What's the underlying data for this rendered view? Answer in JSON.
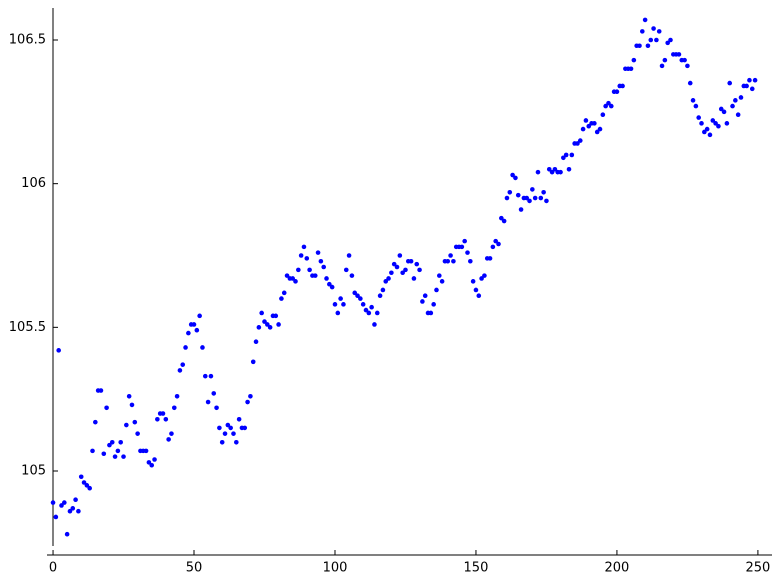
{
  "chart_data": {
    "type": "scatter",
    "color": "#0000ff",
    "x": [
      0,
      1,
      2,
      3,
      4,
      5,
      6,
      7,
      8,
      9,
      10,
      11,
      12,
      13,
      14,
      15,
      16,
      17,
      18,
      19,
      20,
      21,
      22,
      23,
      24,
      25,
      26,
      27,
      28,
      29,
      30,
      31,
      32,
      33,
      34,
      35,
      36,
      37,
      38,
      39,
      40,
      41,
      42,
      43,
      44,
      45,
      46,
      47,
      48,
      49,
      50,
      51,
      52,
      53,
      54,
      55,
      56,
      57,
      58,
      59,
      60,
      61,
      62,
      63,
      64,
      65,
      66,
      67,
      68,
      69,
      70,
      71,
      72,
      73,
      74,
      75,
      76,
      77,
      78,
      79,
      80,
      81,
      82,
      83,
      84,
      85,
      86,
      87,
      88,
      89,
      90,
      91,
      92,
      93,
      94,
      95,
      96,
      97,
      98,
      99,
      100,
      101,
      102,
      103,
      104,
      105,
      106,
      107,
      108,
      109,
      110,
      111,
      112,
      113,
      114,
      115,
      116,
      117,
      118,
      119,
      120,
      121,
      122,
      123,
      124,
      125,
      126,
      127,
      128,
      129,
      130,
      131,
      132,
      133,
      134,
      135,
      136,
      137,
      138,
      139,
      140,
      141,
      142,
      143,
      144,
      145,
      146,
      147,
      148,
      149,
      150,
      151,
      152,
      153,
      154,
      155,
      156,
      157,
      158,
      159,
      160,
      161,
      162,
      163,
      164,
      165,
      166,
      167,
      168,
      169,
      170,
      171,
      172,
      173,
      174,
      175,
      176,
      177,
      178,
      179,
      180,
      181,
      182,
      183,
      184,
      185,
      186,
      187,
      188,
      189,
      190,
      191,
      192,
      193,
      194,
      195,
      196,
      197,
      198,
      199,
      200,
      201,
      202,
      203,
      204,
      205,
      206,
      207,
      208,
      209,
      210,
      211,
      212,
      213,
      214,
      215,
      216,
      217,
      218,
      219,
      220,
      221,
      222,
      223,
      224,
      225,
      226,
      227,
      228,
      229,
      230,
      231,
      232,
      233,
      234,
      235,
      236,
      237,
      238,
      239,
      240,
      241,
      242,
      243,
      244,
      245,
      246,
      247,
      248,
      249
    ],
    "values": [
      104.89,
      104.84,
      105.42,
      104.88,
      104.89,
      104.78,
      104.86,
      104.87,
      104.9,
      104.86,
      104.98,
      104.96,
      104.95,
      104.94,
      105.07,
      105.17,
      105.28,
      105.28,
      105.06,
      105.22,
      105.09,
      105.1,
      105.05,
      105.07,
      105.1,
      105.05,
      105.16,
      105.26,
      105.23,
      105.17,
      105.13,
      105.07,
      105.07,
      105.07,
      105.03,
      105.02,
      105.04,
      105.18,
      105.2,
      105.2,
      105.18,
      105.11,
      105.13,
      105.22,
      105.26,
      105.35,
      105.37,
      105.43,
      105.48,
      105.51,
      105.51,
      105.49,
      105.54,
      105.43,
      105.33,
      105.24,
      105.33,
      105.27,
      105.22,
      105.15,
      105.1,
      105.13,
      105.16,
      105.15,
      105.13,
      105.1,
      105.18,
      105.15,
      105.15,
      105.24,
      105.26,
      105.38,
      105.45,
      105.5,
      105.55,
      105.52,
      105.51,
      105.5,
      105.54,
      105.54,
      105.51,
      105.6,
      105.62,
      105.68,
      105.67,
      105.67,
      105.66,
      105.7,
      105.75,
      105.78,
      105.74,
      105.7,
      105.68,
      105.68,
      105.76,
      105.73,
      105.71,
      105.67,
      105.65,
      105.64,
      105.58,
      105.55,
      105.6,
      105.58,
      105.7,
      105.75,
      105.68,
      105.62,
      105.61,
      105.6,
      105.58,
      105.56,
      105.55,
      105.57,
      105.51,
      105.55,
      105.61,
      105.63,
      105.66,
      105.67,
      105.69,
      105.72,
      105.71,
      105.75,
      105.69,
      105.7,
      105.73,
      105.73,
      105.67,
      105.72,
      105.7,
      105.59,
      105.61,
      105.55,
      105.55,
      105.58,
      105.63,
      105.68,
      105.66,
      105.73,
      105.73,
      105.75,
      105.73,
      105.78,
      105.78,
      105.78,
      105.8,
      105.76,
      105.73,
      105.66,
      105.63,
      105.61,
      105.67,
      105.68,
      105.74,
      105.74,
      105.78,
      105.8,
      105.79,
      105.88,
      105.87,
      105.95,
      105.97,
      106.03,
      106.02,
      105.96,
      105.91,
      105.95,
      105.95,
      105.94,
      105.98,
      105.95,
      106.04,
      105.95,
      105.97,
      105.94,
      106.05,
      106.04,
      106.05,
      106.04,
      106.04,
      106.09,
      106.1,
      106.05,
      106.1,
      106.14,
      106.14,
      106.15,
      106.19,
      106.22,
      106.2,
      106.21,
      106.21,
      106.18,
      106.19,
      106.24,
      106.27,
      106.28,
      106.27,
      106.32,
      106.32,
      106.34,
      106.34,
      106.4,
      106.4,
      106.4,
      106.43,
      106.48,
      106.48,
      106.53,
      106.57,
      106.48,
      106.5,
      106.54,
      106.5,
      106.53,
      106.41,
      106.43,
      106.49,
      106.5,
      106.45,
      106.45,
      106.45,
      106.43,
      106.43,
      106.41,
      106.35,
      106.29,
      106.27,
      106.23,
      106.21,
      106.18,
      106.19,
      106.17,
      106.22,
      106.21,
      106.2,
      106.26,
      106.25,
      106.21,
      106.35,
      106.27,
      106.29,
      106.24,
      106.3,
      106.34,
      106.34,
      106.36,
      106.33,
      106.36
    ],
    "xlim": [
      -2,
      255
    ],
    "ylim": [
      104.74,
      106.61
    ],
    "xticks": [
      0,
      50,
      100,
      150,
      200,
      250
    ],
    "yticks": [
      105,
      105.5,
      106,
      106.5
    ]
  }
}
